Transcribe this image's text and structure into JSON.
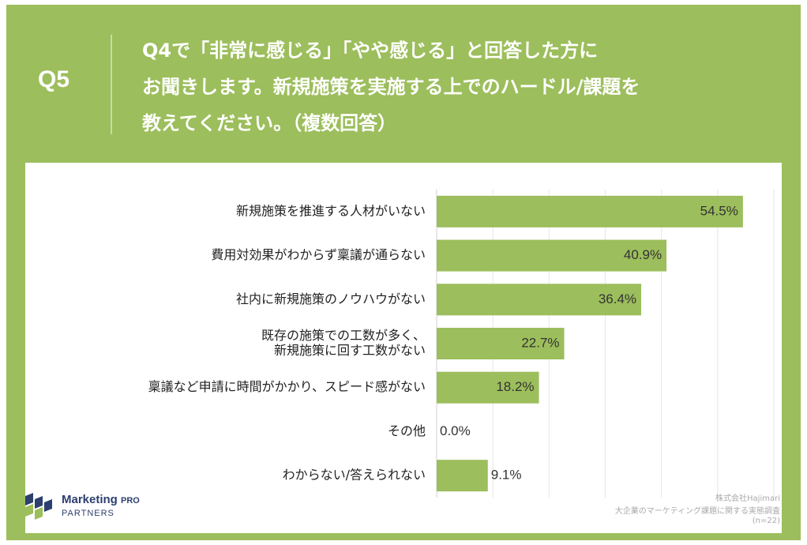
{
  "header": {
    "qnum": "Q5",
    "line1": "Q4で「非常に感じる」「やや感じる」と回答した方に",
    "line2": "お聞きします。新規施策を実施する上でのハードル/課題を",
    "line3": "教えてください。（複数回答）"
  },
  "chart_data": {
    "type": "bar",
    "orientation": "horizontal",
    "categories": [
      [
        "新規施策を推進する人材がいない"
      ],
      [
        "費用対効果がわからず稟議が通らない"
      ],
      [
        "社内に新規施策のノウハウがない"
      ],
      [
        "既存の施策での工数が多く、",
        "新規施策に回す工数がない"
      ],
      [
        "稟議など申請に時間がかかり、スピード感がない"
      ],
      [
        "その他"
      ],
      [
        "わからない/答えられない"
      ]
    ],
    "values": [
      54.5,
      40.9,
      36.4,
      22.7,
      18.2,
      0.0,
      9.1
    ],
    "value_labels": [
      "54.5%",
      "40.9%",
      "36.4%",
      "22.7%",
      "18.2%",
      "0.0%",
      "9.1%"
    ],
    "xlim": [
      0,
      60
    ],
    "grid": true,
    "bar_color": "#9cbe5c"
  },
  "logo": {
    "brand": "Marketing",
    "pro": "PRO",
    "sub": "PARTNERS"
  },
  "source": {
    "line1": "株式会社Hajimari",
    "line2": "大企業のマーケティング課題に関する実態調査",
    "line3": "(n=22)"
  },
  "colors": {
    "frame": "#9cbe5c",
    "bar": "#9cbe5c",
    "logo": "#2c3f6e"
  }
}
